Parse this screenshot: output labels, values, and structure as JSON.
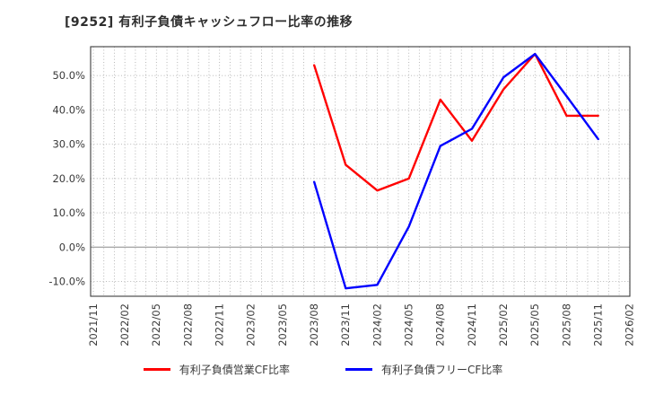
{
  "title": "[9252]  有利子負債キャッシュフロー比率の推移",
  "chart_data": {
    "type": "line",
    "title": "有利子負債キャッシュフロー比率の推移",
    "ticker": "9252",
    "x_tick_labels": [
      "2021/11",
      "2022/02",
      "2022/05",
      "2022/08",
      "2022/11",
      "2023/02",
      "2023/05",
      "2023/08",
      "2023/11",
      "2024/02",
      "2024/05",
      "2024/08",
      "2024/11",
      "2025/02",
      "2025/05",
      "2025/08",
      "2025/11",
      "2026/02"
    ],
    "y_tick_labels": [
      "50.0%",
      "40.0%",
      "30.0%",
      "20.0%",
      "10.0%",
      "0.0%",
      "-10.0%"
    ],
    "y_tick_values": [
      50,
      40,
      30,
      20,
      10,
      0,
      -10
    ],
    "ylim": [
      -14.3,
      58.4
    ],
    "x_axis": {
      "start": "2021/11",
      "end": "2026/02",
      "minor_grid": "monthly",
      "label_interval": "quarterly"
    },
    "grid": {
      "style": "dotted",
      "zero_line": "solid",
      "on": true
    },
    "legend_position": "bottom",
    "series": [
      {
        "name": "有利子負債営業CF比率",
        "color": "#ff0000",
        "x": [
          "2023/08",
          "2023/11",
          "2024/02",
          "2024/05",
          "2024/08",
          "2024/11",
          "2025/02",
          "2025/05",
          "2025/08",
          "2025/11"
        ],
        "values": [
          53,
          24,
          16.5,
          20,
          43,
          31,
          46,
          56.3,
          38.3,
          38.3
        ]
      },
      {
        "name": "有利子負債フリーCF比率",
        "color": "#0000ff",
        "x": [
          "2023/08",
          "2023/11",
          "2024/02",
          "2024/05",
          "2024/08",
          "2024/11",
          "2025/02",
          "2025/05",
          "2025/08",
          "2025/11"
        ],
        "values": [
          19,
          -12,
          -11,
          6,
          29.5,
          34.5,
          49.5,
          56.3,
          44,
          31.5
        ]
      }
    ]
  }
}
